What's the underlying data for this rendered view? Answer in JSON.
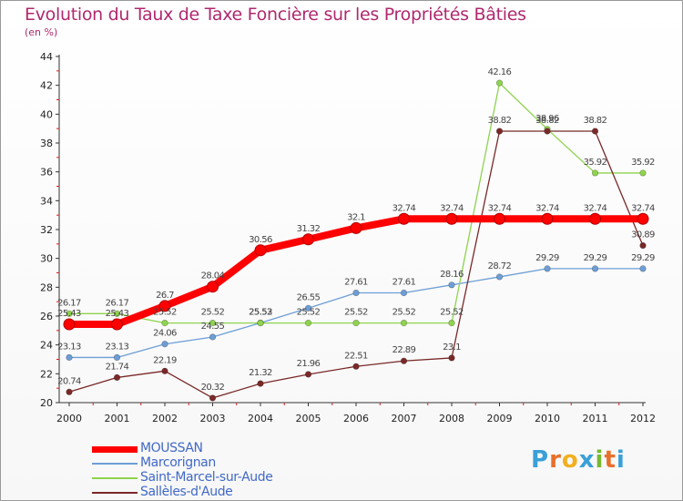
{
  "header": {
    "title": "Evolution du Taux de Taxe Foncière sur les Propriétés Bâties",
    "subtitle": "(en %)"
  },
  "brand": {
    "text": "Proxiti",
    "letters": [
      "P",
      "r",
      "o",
      "x",
      "i",
      "t",
      "i"
    ],
    "letter_colors": [
      "#3aa0d8",
      "#e8702a",
      "#f0b020",
      "#3aa0d8",
      "#78b832",
      "#e8702a",
      "#3aa0d8"
    ]
  },
  "chart_data": {
    "type": "line",
    "title": "Evolution du Taux de Taxe Foncière sur les Propriétés Bâties",
    "ylabel": "(en %)",
    "xlabel": "",
    "ylim": [
      20,
      44
    ],
    "yticks": [
      20,
      22,
      24,
      26,
      28,
      30,
      32,
      34,
      36,
      38,
      40,
      42,
      44
    ],
    "grid": false,
    "legend_position": "bottom-left",
    "categories": [
      "2000",
      "2001",
      "2002",
      "2003",
      "2004",
      "2005",
      "2006",
      "2007",
      "2008",
      "2009",
      "2010",
      "2011",
      "2012"
    ],
    "series": [
      {
        "name": "MOUSSAN",
        "color": "#ff0000",
        "emphasis": true,
        "values": [
          25.43,
          25.43,
          26.7,
          28.04,
          30.56,
          31.32,
          32.1,
          32.74,
          32.74,
          32.74,
          32.74,
          32.74,
          32.74
        ],
        "labels": [
          "25.43",
          "25.43",
          "26.7",
          "28.04",
          "30.56",
          "31.32",
          "32.1",
          "32.74",
          "32.74",
          "32.74",
          "32.74",
          "32.74",
          "32.74"
        ]
      },
      {
        "name": "Marcorignan",
        "color": "#6d9ed6",
        "values": [
          23.13,
          23.13,
          24.06,
          24.55,
          25.53,
          26.55,
          27.61,
          27.61,
          28.16,
          28.72,
          29.29,
          29.29,
          29.29
        ],
        "labels": [
          "23.13",
          "23.13",
          "24.06",
          "24.55",
          "25.53",
          "26.55",
          "27.61",
          "27.61",
          "28.16",
          "28.72",
          "29.29",
          "29.29",
          "29.29"
        ]
      },
      {
        "name": "Saint-Marcel-sur-Aude",
        "color": "#8fd34e",
        "values": [
          26.17,
          26.17,
          25.52,
          25.52,
          25.52,
          25.52,
          25.52,
          25.52,
          25.52,
          42.16,
          38.96,
          35.92,
          35.92
        ],
        "labels": [
          "26.17",
          "26.17",
          "25.52",
          "25.52",
          "25.52",
          "25.52",
          "25.52",
          "25.52",
          "25.52",
          "42.16",
          "38.96",
          "35.92",
          "35.92"
        ]
      },
      {
        "name": "Sallèles-d'Aude",
        "color": "#7a2828",
        "values": [
          20.74,
          21.74,
          22.19,
          20.32,
          21.32,
          21.96,
          22.51,
          22.89,
          23.1,
          38.82,
          38.82,
          38.82,
          30.89
        ],
        "labels": [
          "20.74",
          "21.74",
          "22.19",
          "20.32",
          "21.32",
          "21.96",
          "22.51",
          "22.89",
          "23.1",
          "38.82",
          "38.82",
          "38.82",
          "30.89"
        ]
      }
    ]
  }
}
